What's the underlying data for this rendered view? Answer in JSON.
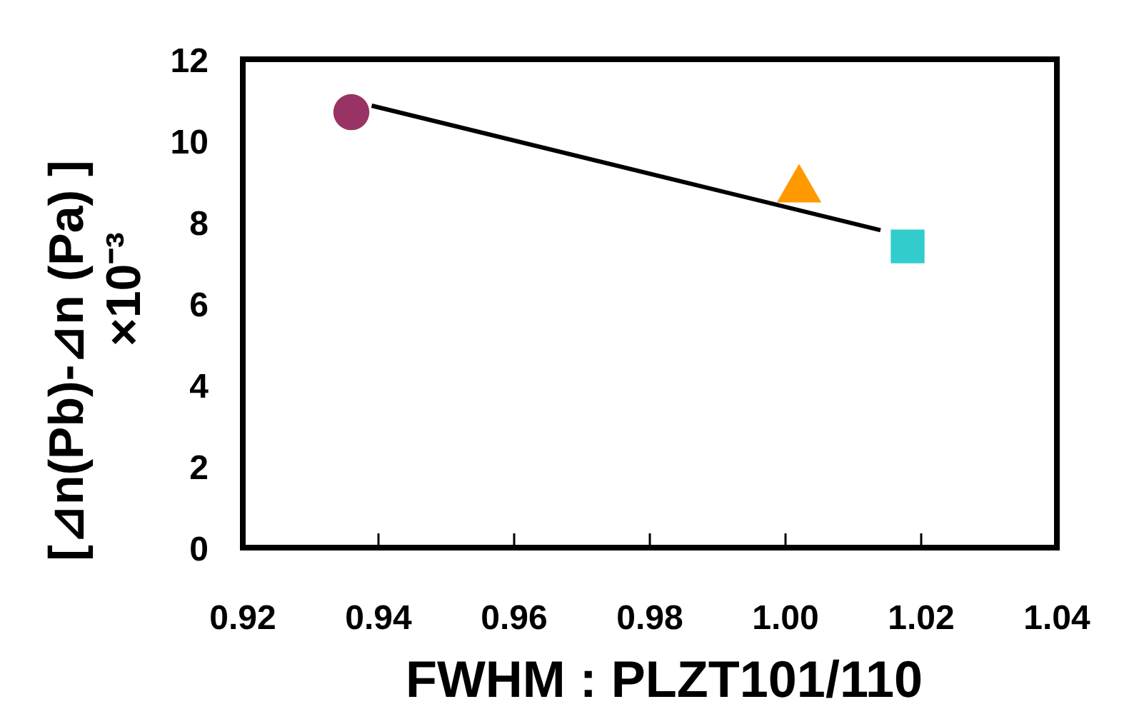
{
  "chart_data": {
    "type": "scatter",
    "xlabel": "FWHM : PLZT101/110",
    "ylabel": "[⊿n(Pb)-⊿n (Pa) ]\n×10⁻³",
    "xlim": [
      0.92,
      1.04
    ],
    "xticks": [
      {
        "value": 0.92,
        "label": "0.92"
      },
      {
        "value": 0.94,
        "label": "0.94"
      },
      {
        "value": 0.96,
        "label": "0.96"
      },
      {
        "value": 0.98,
        "label": "0.98"
      },
      {
        "value": 1.0,
        "label": "1.00"
      },
      {
        "value": 1.02,
        "label": "1.02"
      },
      {
        "value": 1.04,
        "label": "1.04"
      }
    ],
    "ylim": [
      0,
      12
    ],
    "yticks": [
      0,
      2,
      4,
      6,
      8,
      10,
      12
    ],
    "grid": false,
    "series": [
      {
        "color": "#993366",
        "x": [
          0.936
        ],
        "values": [
          10.7
        ],
        "marker": "circle"
      },
      {
        "color": "#ff9900",
        "x": [
          1.002
        ],
        "values": [
          8.8
        ],
        "marker": "triangle"
      },
      {
        "color": "#33cccc",
        "x": [
          1.018
        ],
        "values": [
          7.4
        ],
        "marker": "square"
      },
      {
        "type": "line",
        "color": "#000000",
        "x": [
          0.939,
          1.014
        ],
        "values": [
          10.86,
          7.8
        ],
        "marker": "none",
        "line_style": "solid"
      }
    ]
  }
}
